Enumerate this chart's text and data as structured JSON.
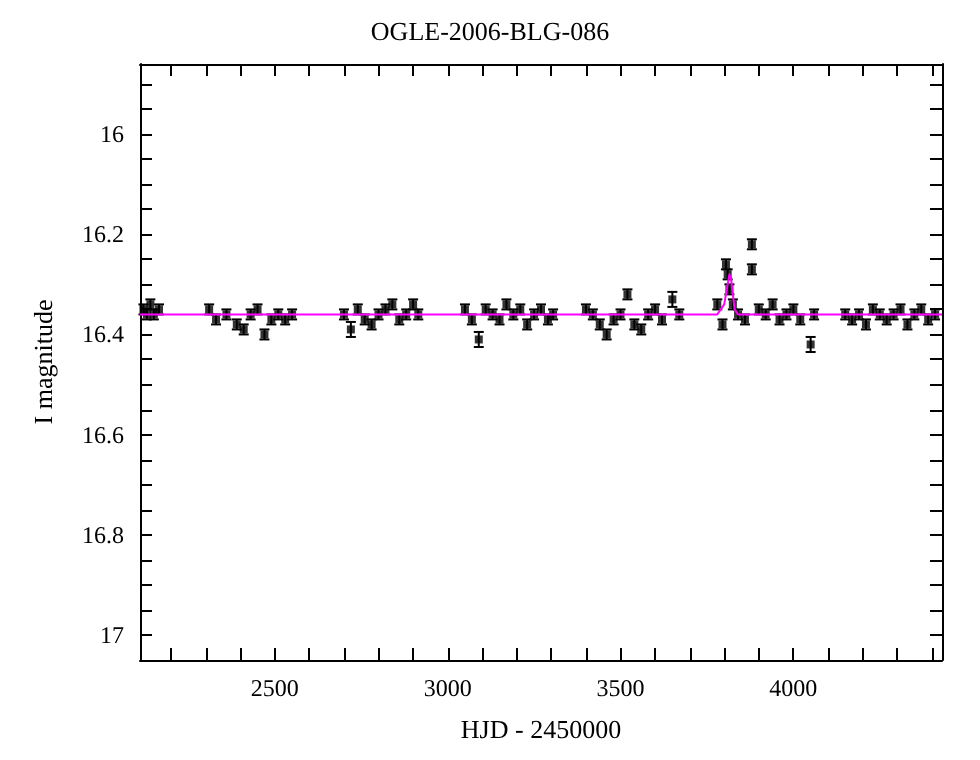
{
  "chart_data": {
    "type": "scatter",
    "title": "OGLE-2006-BLG-086",
    "xlabel": "HJD - 2450000",
    "ylabel": "I magnitude",
    "xlim": [
      2110,
      4430
    ],
    "ylim": [
      17.05,
      15.86
    ],
    "xticks": [
      {
        "value": 2200,
        "label": null
      },
      {
        "value": 2300,
        "label": null
      },
      {
        "value": 2400,
        "label": null
      },
      2500,
      {
        "value": 2600,
        "label": null
      },
      {
        "value": 2700,
        "label": null
      },
      {
        "value": 2800,
        "label": null
      },
      {
        "value": 2900,
        "label": null
      },
      3000,
      {
        "value": 3100,
        "label": null
      },
      {
        "value": 3200,
        "label": null
      },
      {
        "value": 3300,
        "label": null
      },
      {
        "value": 3400,
        "label": null
      },
      3500,
      {
        "value": 3600,
        "label": null
      },
      {
        "value": 3700,
        "label": null
      },
      {
        "value": 3800,
        "label": null
      },
      {
        "value": 3900,
        "label": null
      },
      4000,
      {
        "value": 4100,
        "label": null
      },
      {
        "value": 4200,
        "label": null
      },
      {
        "value": 4300,
        "label": null
      },
      {
        "value": 4400,
        "label": null
      }
    ],
    "yticks": [
      {
        "value": 15.9,
        "label": null
      },
      {
        "value": 15.95,
        "label": null
      },
      16,
      {
        "value": 16.05,
        "label": null
      },
      {
        "value": 16.1,
        "label": null
      },
      {
        "value": 16.15,
        "label": null
      },
      16.2,
      {
        "value": 16.25,
        "label": null
      },
      {
        "value": 16.3,
        "label": null
      },
      {
        "value": 16.35,
        "label": null
      },
      16.4,
      {
        "value": 16.45,
        "label": null
      },
      {
        "value": 16.5,
        "label": null
      },
      {
        "value": 16.55,
        "label": null
      },
      16.6,
      {
        "value": 16.65,
        "label": null
      },
      {
        "value": 16.7,
        "label": null
      },
      {
        "value": 16.75,
        "label": null
      },
      16.8,
      {
        "value": 16.85,
        "label": null
      },
      {
        "value": 16.9,
        "label": null
      },
      {
        "value": 16.95,
        "label": null
      },
      17,
      {
        "value": 17.05,
        "label": null
      }
    ],
    "grid": false,
    "marker": "square",
    "series": [
      {
        "color": "#000000",
        "x": [
          2120,
          2130,
          2140,
          2150,
          2165,
          2310,
          2330,
          2360,
          2390,
          2410,
          2430,
          2450,
          2470,
          2490,
          2510,
          2530,
          2550,
          2700,
          2720,
          2740,
          2760,
          2780,
          2800,
          2820,
          2840,
          2860,
          2880,
          2900,
          2915,
          3050,
          3070,
          3090,
          3110,
          3130,
          3150,
          3170,
          3190,
          3210,
          3230,
          3250,
          3270,
          3290,
          3305,
          3400,
          3420,
          3440,
          3460,
          3480,
          3500,
          3520,
          3540,
          3560,
          3580,
          3600,
          3620,
          3650,
          3670,
          3780,
          3795,
          3805,
          3810,
          3815,
          3825,
          3840,
          3860,
          3880,
          3880,
          3900,
          3920,
          3940,
          3960,
          3980,
          4000,
          4020,
          4050,
          4060,
          4150,
          4170,
          4190,
          4210,
          4230,
          4250,
          4270,
          4290,
          4310,
          4330,
          4350,
          4370,
          4390,
          4410
        ],
        "values": [
          16.35,
          16.36,
          16.34,
          16.36,
          16.35,
          16.35,
          16.37,
          16.36,
          16.38,
          16.39,
          16.36,
          16.35,
          16.4,
          16.37,
          16.36,
          16.37,
          16.36,
          16.36,
          16.39,
          16.35,
          16.37,
          16.38,
          16.36,
          16.35,
          16.34,
          16.37,
          16.36,
          16.34,
          16.36,
          16.35,
          16.37,
          16.41,
          16.35,
          16.36,
          16.37,
          16.34,
          16.36,
          16.35,
          16.38,
          16.36,
          16.35,
          16.37,
          16.36,
          16.35,
          16.36,
          16.38,
          16.4,
          16.37,
          16.36,
          16.32,
          16.38,
          16.39,
          16.36,
          16.35,
          16.37,
          16.33,
          16.36,
          16.34,
          16.38,
          16.26,
          16.28,
          16.31,
          16.34,
          16.36,
          16.37,
          16.22,
          16.27,
          16.35,
          16.36,
          16.34,
          16.37,
          16.36,
          16.35,
          16.37,
          16.42,
          16.36,
          16.36,
          16.37,
          16.36,
          16.38,
          16.35,
          16.36,
          16.37,
          16.36,
          16.35,
          16.38,
          16.36,
          16.35,
          16.37,
          16.36
        ],
        "errors": [
          0.01,
          0.01,
          0.01,
          0.01,
          0.01,
          0.01,
          0.01,
          0.01,
          0.01,
          0.01,
          0.01,
          0.01,
          0.01,
          0.01,
          0.01,
          0.01,
          0.01,
          0.01,
          0.015,
          0.01,
          0.01,
          0.01,
          0.01,
          0.01,
          0.01,
          0.01,
          0.01,
          0.01,
          0.01,
          0.01,
          0.01,
          0.015,
          0.01,
          0.01,
          0.01,
          0.01,
          0.01,
          0.01,
          0.01,
          0.01,
          0.01,
          0.01,
          0.01,
          0.01,
          0.01,
          0.01,
          0.01,
          0.01,
          0.01,
          0.01,
          0.01,
          0.01,
          0.01,
          0.01,
          0.01,
          0.015,
          0.01,
          0.01,
          0.01,
          0.01,
          0.01,
          0.01,
          0.01,
          0.01,
          0.01,
          0.01,
          0.01,
          0.01,
          0.01,
          0.01,
          0.01,
          0.01,
          0.01,
          0.01,
          0.015,
          0.01,
          0.01,
          0.01,
          0.01,
          0.01,
          0.01,
          0.01,
          0.01,
          0.01,
          0.01,
          0.01,
          0.01,
          0.01,
          0.01,
          0.01
        ]
      },
      {
        "type": "line",
        "color": "#ff00ff",
        "marker": "none",
        "x": [
          2110,
          3780,
          3800,
          3810,
          3815,
          3820,
          3825,
          3830,
          3840,
          4430
        ],
        "values": [
          16.36,
          16.36,
          16.34,
          16.3,
          16.28,
          16.29,
          16.32,
          16.35,
          16.36,
          16.36
        ]
      }
    ]
  }
}
